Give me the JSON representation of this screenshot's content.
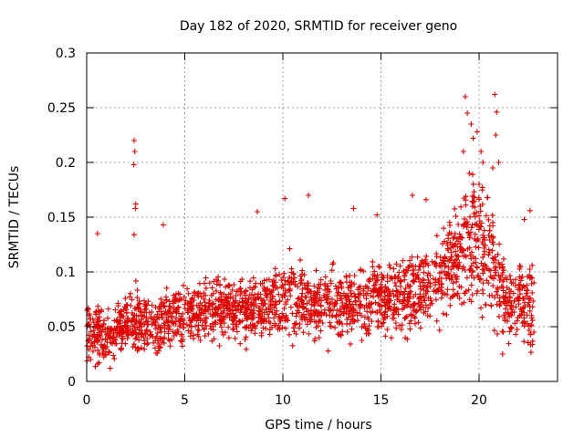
{
  "chart_data": {
    "type": "scatter",
    "title": "Day 182 of 2020, SRMTID for receiver geno",
    "xlabel": "GPS time / hours",
    "ylabel": "SRMTID / TECUs",
    "xlim": [
      0,
      24
    ],
    "ylim": [
      0,
      0.3
    ],
    "x_ticks": [
      0,
      5,
      10,
      15,
      20
    ],
    "x_tick_labels": [
      "0",
      "5",
      "10",
      "15",
      "20"
    ],
    "y_ticks": [
      0,
      0.05,
      0.1,
      0.15,
      0.2,
      0.25,
      0.3
    ],
    "y_tick_labels": [
      "0",
      "0.05",
      "0.1",
      "0.15",
      "0.2",
      "0.25",
      "0.3"
    ],
    "grid": true,
    "marker": "plus",
    "color": "#e00000",
    "series": [
      {
        "name": "SRMTID",
        "profile": [
          {
            "x": 0.0,
            "center": 0.045,
            "spread": 0.02
          },
          {
            "x": 1.0,
            "center": 0.038,
            "spread": 0.02
          },
          {
            "x": 2.0,
            "center": 0.055,
            "spread": 0.022
          },
          {
            "x": 3.0,
            "center": 0.052,
            "spread": 0.022
          },
          {
            "x": 4.0,
            "center": 0.055,
            "spread": 0.022
          },
          {
            "x": 5.0,
            "center": 0.062,
            "spread": 0.022
          },
          {
            "x": 7.0,
            "center": 0.066,
            "spread": 0.022
          },
          {
            "x": 9.0,
            "center": 0.068,
            "spread": 0.022
          },
          {
            "x": 10.0,
            "center": 0.078,
            "spread": 0.028
          },
          {
            "x": 12.0,
            "center": 0.07,
            "spread": 0.024
          },
          {
            "x": 14.0,
            "center": 0.072,
            "spread": 0.024
          },
          {
            "x": 16.0,
            "center": 0.078,
            "spread": 0.026
          },
          {
            "x": 18.0,
            "center": 0.09,
            "spread": 0.028
          },
          {
            "x": 19.5,
            "center": 0.13,
            "spread": 0.045
          },
          {
            "x": 20.5,
            "center": 0.12,
            "spread": 0.05
          },
          {
            "x": 21.3,
            "center": 0.075,
            "spread": 0.03
          },
          {
            "x": 22.8,
            "center": 0.065,
            "spread": 0.03
          }
        ],
        "point_count": 2200,
        "x_range": [
          0.0,
          22.8
        ],
        "outliers": [
          {
            "x": 2.42,
            "y": 0.22
          },
          {
            "x": 2.45,
            "y": 0.21
          },
          {
            "x": 2.4,
            "y": 0.198
          },
          {
            "x": 2.5,
            "y": 0.162
          },
          {
            "x": 2.48,
            "y": 0.158
          },
          {
            "x": 2.42,
            "y": 0.134
          },
          {
            "x": 0.55,
            "y": 0.135
          },
          {
            "x": 3.9,
            "y": 0.143
          },
          {
            "x": 8.7,
            "y": 0.155
          },
          {
            "x": 10.1,
            "y": 0.167
          },
          {
            "x": 11.3,
            "y": 0.17
          },
          {
            "x": 13.6,
            "y": 0.158
          },
          {
            "x": 14.8,
            "y": 0.152
          },
          {
            "x": 16.6,
            "y": 0.17
          },
          {
            "x": 17.3,
            "y": 0.166
          },
          {
            "x": 19.3,
            "y": 0.26
          },
          {
            "x": 19.4,
            "y": 0.245
          },
          {
            "x": 19.6,
            "y": 0.235
          },
          {
            "x": 19.7,
            "y": 0.222
          },
          {
            "x": 19.9,
            "y": 0.228
          },
          {
            "x": 20.1,
            "y": 0.21
          },
          {
            "x": 20.2,
            "y": 0.2
          },
          {
            "x": 20.8,
            "y": 0.262
          },
          {
            "x": 20.9,
            "y": 0.246
          },
          {
            "x": 20.85,
            "y": 0.225
          },
          {
            "x": 21.0,
            "y": 0.2
          },
          {
            "x": 20.7,
            "y": 0.195
          },
          {
            "x": 19.5,
            "y": 0.19
          },
          {
            "x": 20.0,
            "y": 0.18
          },
          {
            "x": 22.6,
            "y": 0.156
          },
          {
            "x": 22.3,
            "y": 0.148
          },
          {
            "x": 19.2,
            "y": 0.21
          },
          {
            "x": 1.2,
            "y": 0.012
          },
          {
            "x": 0.2,
            "y": 0.02
          },
          {
            "x": 21.2,
            "y": 0.025
          }
        ]
      }
    ]
  }
}
